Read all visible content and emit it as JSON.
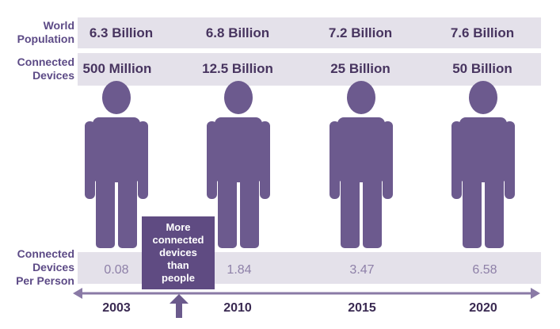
{
  "rows": {
    "population_label": [
      "World",
      "Population"
    ],
    "devices_label": [
      "Connected",
      "Devices"
    ],
    "per_person_label": [
      "Connected",
      "Devices",
      "Per Person"
    ]
  },
  "columns": [
    {
      "population": "6.3 Billion",
      "devices": "500 Million",
      "per_person": "0.08",
      "year": "2003"
    },
    {
      "population": "6.8 Billion",
      "devices": "12.5 Billion",
      "per_person": "1.84",
      "year": "2010"
    },
    {
      "population": "7.2 Billion",
      "devices": "25 Billion",
      "per_person": "3.47",
      "year": "2015"
    },
    {
      "population": "7.6 Billion",
      "devices": "50 Billion",
      "per_person": "6.58",
      "year": "2020"
    }
  ],
  "callout": [
    "More",
    "connected",
    "devices",
    "than",
    "people"
  ],
  "icons": {
    "person": "person-icon",
    "timeline": "double-arrow-timeline",
    "pointer": "up-arrow-icon"
  },
  "colors": {
    "figure": "#6c5a8e",
    "band": "#e4e1ea",
    "label": "#5c4a86",
    "callout": "#5f4b82",
    "timeline": "#8a7aa6",
    "arrow": "#6b5a8c"
  }
}
